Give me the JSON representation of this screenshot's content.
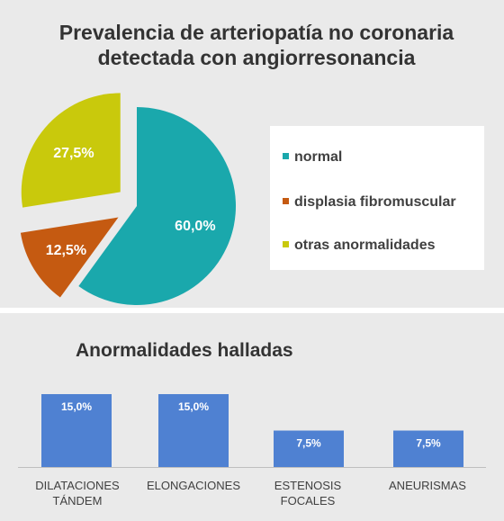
{
  "chart_data": [
    {
      "type": "pie",
      "title": "Prevalencia de arteriopatía no coronaria detectada con angiorresonancia",
      "labels": [
        "normal",
        "displasia fibromuscular",
        "otras anormalidades"
      ],
      "values": [
        60.0,
        12.5,
        27.5
      ],
      "data_labels": [
        "60,0%",
        "12,5%",
        "27,5%"
      ],
      "colors": [
        "#1aa8ac",
        "#c55a11",
        "#c9c90c"
      ],
      "legend": "right",
      "exploded": true
    },
    {
      "type": "bar",
      "title": "Anormalidades halladas",
      "categories": [
        "DILATACIONES TÁNDEM",
        "ELONGACIONES",
        "ESTENOSIS FOCALES",
        "ANEURISMAS"
      ],
      "values": [
        15.0,
        15.0,
        7.5,
        7.5
      ],
      "data_labels": [
        "15,0%",
        "15,0%",
        "7,5%",
        "7,5%"
      ],
      "color": "#4f81d2",
      "ylim": [
        0,
        15
      ],
      "grid": false,
      "legend": "none"
    }
  ]
}
